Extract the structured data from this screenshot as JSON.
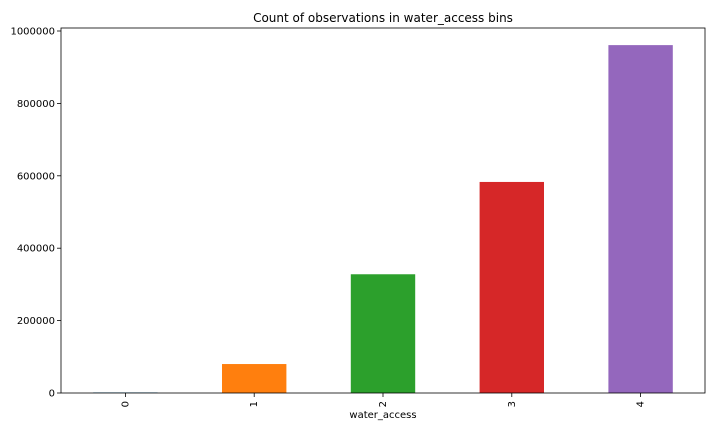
{
  "chart_data": {
    "type": "bar",
    "title": "Count of observations in water_access bins",
    "xlabel": "water_access",
    "ylabel": "",
    "categories": [
      "0",
      "1",
      "2",
      "3",
      "4"
    ],
    "values": [
      1500,
      80000,
      328000,
      583000,
      961000
    ],
    "colors": [
      "#1f77b4",
      "#ff7f0e",
      "#2ca02c",
      "#d62728",
      "#9467bd"
    ],
    "ylim": [
      0,
      1000000
    ],
    "yticks": [
      0,
      200000,
      400000,
      600000,
      800000,
      1000000
    ],
    "ytick_labels": [
      "0",
      "200000",
      "400000",
      "600000",
      "800000",
      "1000000"
    ],
    "grid": false,
    "legend": "none"
  }
}
